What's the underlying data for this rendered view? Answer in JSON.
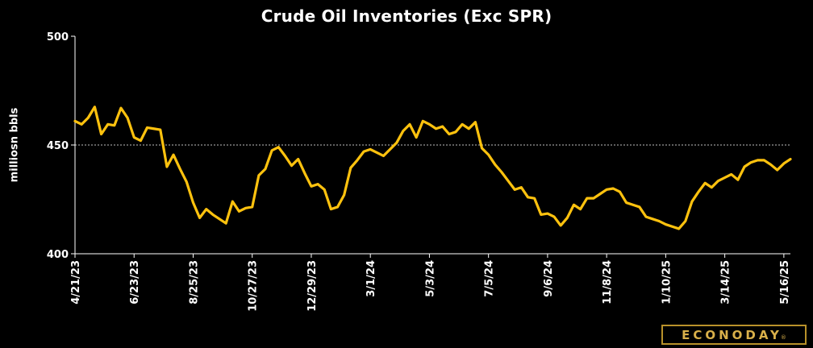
{
  "logo": {
    "text": "ECONODAY",
    "reg_mark": "®"
  },
  "colors": {
    "background": "#000000",
    "line": "#FFC20E",
    "axis": "#ffffff",
    "reference_line": "#ffffff",
    "logo": "#d9b04a"
  },
  "chart_data": {
    "type": "line",
    "title": "Crude Oil Inventories (Exc SPR)",
    "ylabel": "milliosn bbls",
    "xlabel": "",
    "ylim": [
      400,
      500
    ],
    "yticks": [
      400,
      450,
      500
    ],
    "reference_line": 450,
    "grid": false,
    "x_tick_labels": [
      "4/21/23",
      "6/23/23",
      "8/25/23",
      "10/27/23",
      "12/29/23",
      "3/1/24",
      "5/3/24",
      "7/5/24",
      "9/6/24",
      "11/8/24",
      "1/10/25",
      "3/14/25",
      "5/16/25"
    ],
    "x_tick_indices": [
      0,
      9,
      18,
      27,
      36,
      45,
      54,
      63,
      72,
      81,
      90,
      99,
      108
    ],
    "series": [
      {
        "values": [
          461.0,
          459.5,
          462.5,
          467.5,
          455.0,
          459.5,
          459.0,
          467.0,
          462.5,
          453.5,
          452.0,
          458.0,
          457.5,
          457.0,
          440.0,
          445.5,
          439.0,
          433.0,
          423.5,
          416.5,
          420.5,
          418.0,
          416.0,
          414.0,
          424.0,
          419.5,
          421.0,
          421.5,
          436.0,
          439.0,
          447.5,
          449.0,
          445.0,
          440.5,
          443.5,
          437.0,
          431.0,
          432.0,
          429.5,
          420.5,
          421.5,
          427.0,
          439.5,
          443.0,
          447.0,
          448.0,
          446.5,
          445.0,
          448.0,
          451.0,
          456.5,
          459.5,
          453.5,
          461.0,
          459.5,
          457.5,
          458.5,
          455.0,
          456.0,
          459.5,
          457.5,
          460.5,
          448.5,
          445.5,
          441.0,
          437.5,
          433.5,
          429.5,
          430.5,
          426.0,
          425.5,
          418.0,
          418.5,
          417.0,
          413.0,
          416.5,
          422.5,
          420.5,
          425.5,
          425.5,
          427.5,
          429.5,
          430.0,
          428.5,
          423.5,
          422.5,
          421.5,
          417.0,
          416.0,
          415.0,
          413.5,
          412.5,
          411.5,
          415.0,
          424.0,
          428.5,
          432.5,
          430.5,
          433.5,
          435.0,
          436.5,
          434.0,
          440.0,
          442.0,
          443.0,
          443.0,
          441.0,
          438.5,
          441.5,
          443.5
        ]
      }
    ]
  }
}
